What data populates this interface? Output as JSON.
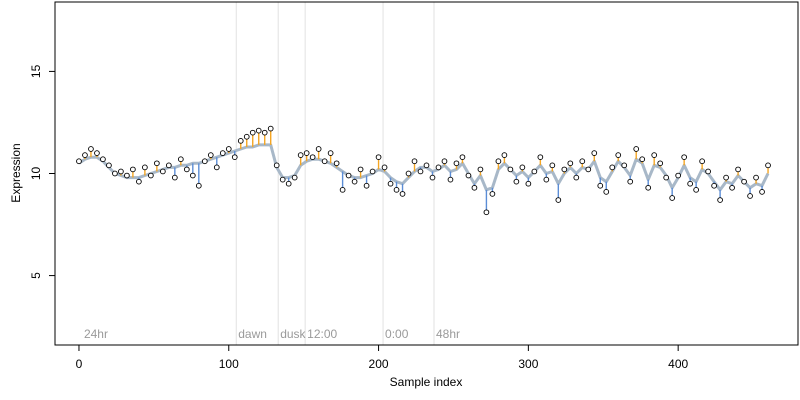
{
  "chart_data": {
    "type": "scatter",
    "title": "",
    "xlabel": "Sample index",
    "ylabel": "Expression",
    "xlim": [
      -16,
      480
    ],
    "ylim": [
      1.6,
      18.4
    ],
    "x_ticks": [
      0,
      100,
      200,
      300,
      400
    ],
    "y_ticks": [
      5,
      10,
      15
    ],
    "grid": false,
    "phase_markers": [
      {
        "x": 105,
        "label": "dawn"
      },
      {
        "x": 133,
        "label": "dusk"
      },
      {
        "x": 151,
        "label": "12:00"
      },
      {
        "x": 203,
        "label": "0:00"
      },
      {
        "x": 237,
        "label": "48hr"
      }
    ],
    "start_label": {
      "x": 2,
      "label": "24hr"
    },
    "colors": {
      "above_fit": "#f5a623",
      "below_fit": "#5b8dd6",
      "fit_line": "#a8b8c8",
      "points_fill": "#ffffff",
      "points_stroke": "#000000"
    },
    "series": [
      {
        "x": [
          0,
          4,
          8,
          12,
          16,
          20,
          24,
          28,
          32,
          36,
          40,
          44,
          48,
          52,
          56,
          60,
          64,
          68,
          72,
          76,
          80,
          84,
          88,
          92,
          96,
          100,
          104,
          108,
          112,
          116,
          120,
          124,
          128,
          132,
          136,
          140,
          144,
          148,
          152,
          156,
          160,
          164,
          168,
          172,
          176,
          180,
          184,
          188,
          192,
          196,
          200,
          204,
          208,
          212,
          216,
          220,
          224,
          228,
          232,
          236,
          240,
          244,
          248,
          252,
          256,
          260,
          264,
          268,
          272,
          276,
          280,
          284,
          288,
          292,
          296,
          300,
          304,
          308,
          312,
          316,
          320,
          324,
          328,
          332,
          336,
          340,
          344,
          348,
          352,
          356,
          360,
          364,
          368,
          372,
          376,
          380,
          384,
          388,
          392,
          396,
          400,
          404,
          408,
          412,
          416,
          420,
          424,
          428,
          432,
          436,
          440,
          444,
          448,
          452,
          456,
          460
        ],
        "observed": [
          10.6,
          10.9,
          11.2,
          11.0,
          10.7,
          10.4,
          10.0,
          10.1,
          9.9,
          10.2,
          9.6,
          10.3,
          9.9,
          10.5,
          10.1,
          10.4,
          9.8,
          10.7,
          10.2,
          9.9,
          9.4,
          10.6,
          10.9,
          10.3,
          11.0,
          11.2,
          10.8,
          11.6,
          11.8,
          12.0,
          12.1,
          12.0,
          12.2,
          10.4,
          9.7,
          9.5,
          9.8,
          10.9,
          11.0,
          10.8,
          11.2,
          10.6,
          11.0,
          10.5,
          9.2,
          9.9,
          9.6,
          10.2,
          9.4,
          10.1,
          10.8,
          10.3,
          9.5,
          9.2,
          9.0,
          10.0,
          10.6,
          10.1,
          10.4,
          9.8,
          10.3,
          10.6,
          9.7,
          10.5,
          10.8,
          9.9,
          9.3,
          10.2,
          8.1,
          9.0,
          10.6,
          10.9,
          10.2,
          9.6,
          10.3,
          9.5,
          10.1,
          10.8,
          9.7,
          10.4,
          8.7,
          10.2,
          10.5,
          9.8,
          10.6,
          10.2,
          11.0,
          9.4,
          9.1,
          10.3,
          10.9,
          10.4,
          9.6,
          11.2,
          10.7,
          9.3,
          10.9,
          10.5,
          9.8,
          8.8,
          9.9,
          10.8,
          9.5,
          9.2,
          10.6,
          10.1,
          9.4,
          8.7,
          9.8,
          9.3,
          10.2,
          9.6,
          8.9,
          9.8,
          9.1,
          10.4
        ],
        "fitted": [
          10.5,
          10.7,
          10.8,
          10.8,
          10.6,
          10.3,
          10.0,
          9.9,
          9.8,
          9.8,
          9.8,
          9.9,
          10.0,
          10.1,
          10.2,
          10.3,
          10.3,
          10.4,
          10.4,
          10.5,
          10.5,
          10.6,
          10.7,
          10.8,
          10.9,
          11.0,
          11.1,
          11.2,
          11.3,
          11.3,
          11.4,
          11.4,
          11.4,
          10.3,
          9.8,
          9.8,
          9.9,
          10.4,
          10.6,
          10.7,
          10.7,
          10.6,
          10.5,
          10.3,
          10.1,
          9.9,
          9.8,
          9.8,
          9.9,
          10.0,
          10.2,
          10.1,
          9.8,
          9.6,
          9.5,
          9.8,
          10.1,
          10.3,
          10.3,
          10.1,
          10.2,
          10.4,
          10.1,
          10.2,
          10.5,
          10.0,
          9.5,
          9.9,
          9.2,
          9.3,
          10.2,
          10.5,
          10.2,
          9.9,
          10.1,
          9.8,
          10.1,
          10.4,
          10.0,
          10.1,
          9.5,
          10.0,
          10.3,
          10.0,
          10.3,
          10.2,
          10.6,
          9.8,
          9.6,
          10.1,
          10.6,
          10.3,
          9.9,
          10.7,
          10.5,
          9.7,
          10.4,
          10.3,
          9.9,
          9.3,
          9.8,
          10.4,
          9.8,
          9.6,
          10.2,
          10.0,
          9.6,
          9.2,
          9.6,
          9.5,
          9.9,
          9.6,
          9.3,
          9.5,
          9.4,
          10.0
        ]
      }
    ]
  }
}
